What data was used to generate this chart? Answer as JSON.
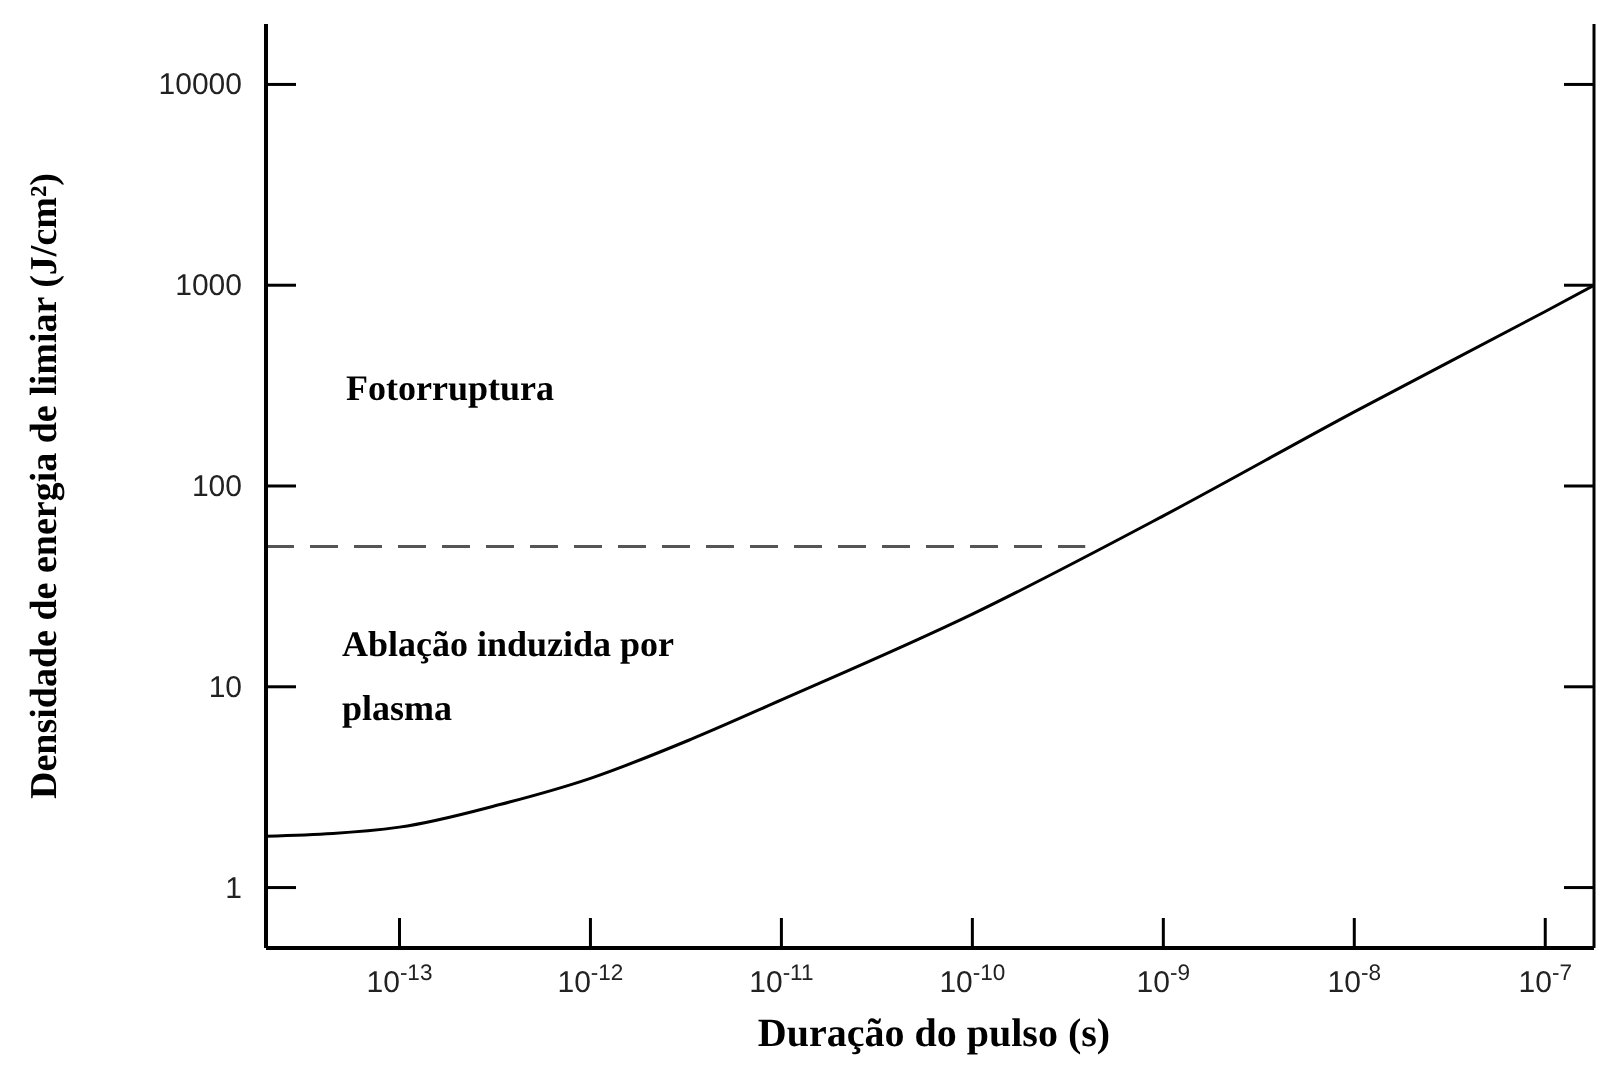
{
  "chart_data": {
    "type": "line",
    "xlabel": "Duração do pulso (s)",
    "ylabel": "Densidade de energia de limiar (J/cm²)",
    "log": "xy",
    "xlim": [
      2e-14,
      1.8e-07
    ],
    "ylim": [
      0.5,
      20000
    ],
    "xticks": [
      {
        "value": 1e-13,
        "label": "10$^{-13}$"
      },
      {
        "value": 1e-12,
        "label": "10$^{-12}$"
      },
      {
        "value": 1e-11,
        "label": "10$^{-11}$"
      },
      {
        "value": 1e-10,
        "label": "10$^{-10}$"
      },
      {
        "value": 1e-09,
        "label": "10$^{-9}$"
      },
      {
        "value": 1e-08,
        "label": "10$^{-8}$"
      },
      {
        "value": 1e-07,
        "label": "10$^{-7}$"
      }
    ],
    "yticks": [
      1,
      10,
      100,
      1000,
      10000
    ],
    "series": [
      {
        "color": "#000000",
        "line_style": "solid",
        "x": [
          2e-14,
          1e-13,
          3.4e-13,
          1e-12,
          3.4e-12,
          1e-11,
          1e-10,
          1e-09,
          1e-08,
          1e-07,
          1.8e-07
        ],
        "values": [
          1.8,
          2.0,
          2.6,
          3.5,
          5.5,
          8.6,
          23,
          71,
          234,
          740,
          1000
        ]
      },
      {
        "color": "#555555",
        "line_style": "dashed",
        "x": [
          2e-14,
          3.9e-10
        ],
        "values": [
          50,
          50
        ]
      }
    ],
    "annotations": [
      "Fotorruptura",
      "Ablação induzida por plasma"
    ]
  }
}
